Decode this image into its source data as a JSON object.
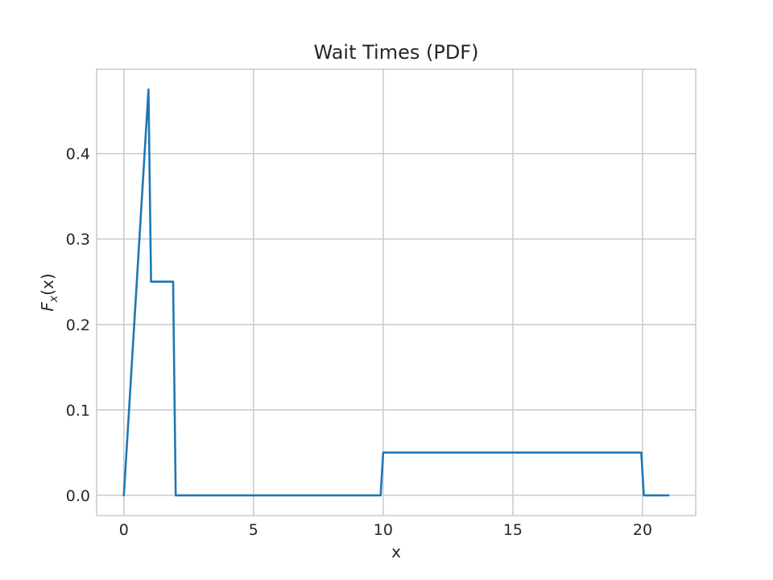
{
  "chart_data": {
    "type": "line",
    "title": "Wait Times (PDF)",
    "xlabel": "x",
    "ylabel_main": "F",
    "ylabel_sub": "x",
    "ylabel_arg": "(x)",
    "xlim": [
      -1.05,
      22.05
    ],
    "ylim": [
      -0.0237,
      0.4987
    ],
    "xticks": [
      0,
      5,
      10,
      15,
      20
    ],
    "yticks": [
      0.0,
      0.1,
      0.2,
      0.3,
      0.4
    ],
    "xtick_labels": [
      "0",
      "5",
      "10",
      "15",
      "20"
    ],
    "ytick_labels": [
      "0.0",
      "0.1",
      "0.2",
      "0.3",
      "0.4"
    ],
    "grid": true,
    "series": [
      {
        "color": "#1f77b4",
        "points": [
          [
            0,
            0
          ],
          [
            0.95,
            0.475
          ],
          [
            1.05,
            0.25
          ],
          [
            1.9,
            0.25
          ],
          [
            2.0,
            0
          ],
          [
            9.9,
            0
          ],
          [
            10.0,
            0.05
          ],
          [
            19.95,
            0.05
          ],
          [
            20.05,
            0
          ],
          [
            21,
            0
          ]
        ]
      }
    ]
  }
}
